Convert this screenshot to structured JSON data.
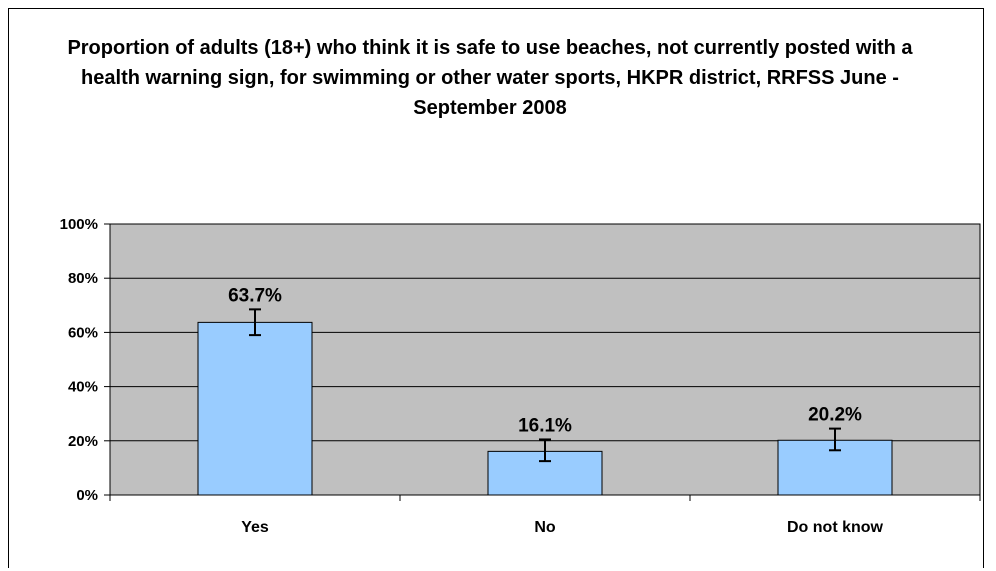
{
  "chart_data": {
    "type": "bar",
    "title": "Proportion of adults (18+) who think it is safe to use beaches, not currently posted with a health warning sign, for swimming or other water sports, HKPR district, RRFSS June - September 2008",
    "categories": [
      "Yes",
      "No",
      "Do not know"
    ],
    "values": [
      63.7,
      16.1,
      20.2
    ],
    "error_bars": {
      "low": [
        59.0,
        12.5,
        16.5
      ],
      "high": [
        68.5,
        20.5,
        24.5
      ]
    },
    "data_labels": [
      "63.7%",
      "16.1%",
      "20.2%"
    ],
    "ylim": [
      0,
      100
    ],
    "yticks": [
      0,
      20,
      40,
      60,
      80,
      100
    ],
    "ytick_labels": [
      "0%",
      "20%",
      "40%",
      "60%",
      "80%",
      "100%"
    ],
    "xlabel": "",
    "ylabel": "",
    "grid": true,
    "legend": "none",
    "colors": {
      "bar": "#99ccff",
      "plot_bg": "#c0c0c0",
      "grid": "#000000",
      "border": "#000000"
    }
  }
}
